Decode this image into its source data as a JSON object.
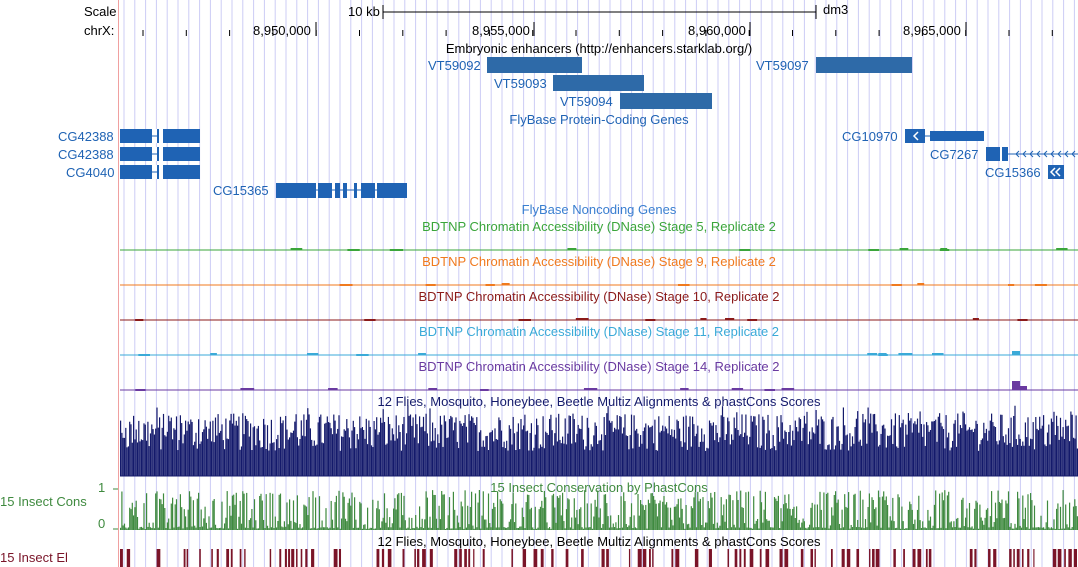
{
  "ruler": {
    "scale_label": "Scale",
    "chrom_label": "chrX:",
    "scale_bar_text": "10 kb",
    "assembly": "dm3",
    "ticks": [
      "8,950,000",
      "8,955,000",
      "8,960,000",
      "8,965,000"
    ]
  },
  "tracks": {
    "enhancers": {
      "title": "Embryonic enhancers (http://enhancers.starklab.org/)",
      "items": [
        "VT59092",
        "VT59093",
        "VT59094",
        "VT59097"
      ]
    },
    "flybase_coding": {
      "title": "FlyBase Protein-Coding Genes",
      "genes": [
        "CG42388",
        "CG42388",
        "CG4040",
        "CG15365",
        "CG10970",
        "CG7267",
        "CG15366"
      ]
    },
    "flybase_noncoding": {
      "title": "FlyBase Noncoding Genes"
    },
    "dnase": [
      {
        "title": "BDTNP Chromatin Accessibility (DNase) Stage 5, Replicate 2",
        "color": "#3aa53a"
      },
      {
        "title": "BDTNP Chromatin Accessibility (DNase) Stage 9, Replicate 2",
        "color": "#f07a1e"
      },
      {
        "title": "BDTNP Chromatin Accessibility (DNase) Stage 10, Replicate 2",
        "color": "#8b1a1a"
      },
      {
        "title": "BDTNP Chromatin Accessibility (DNase) Stage 11, Replicate 2",
        "color": "#3aaad8"
      },
      {
        "title": "BDTNP Chromatin Accessibility (DNase) Stage 14, Replicate 2",
        "color": "#6a3aa0"
      }
    ],
    "multiz": {
      "title": "12 Flies, Mosquito, Honeybee, Beetle Multiz Alignments & phastCons Scores",
      "color": "#141a6b"
    },
    "phastcons": {
      "title": "15 Insect Conservation by PhastCons",
      "side_label": "15 Insect Cons",
      "y_max": "1",
      "y_min": "0",
      "color": "#3f8a3f"
    },
    "elements": {
      "title": "12 Flies, Mosquito, Honeybee, Beetle Multiz Alignments & phastCons Scores",
      "side_label": "15 Insect El",
      "color": "#7a1428"
    }
  },
  "colors": {
    "gene": "#1f63b4",
    "enhancer": "#2e6aa8",
    "gutter": "#f0a0a0",
    "grid": "#ccccf5"
  }
}
